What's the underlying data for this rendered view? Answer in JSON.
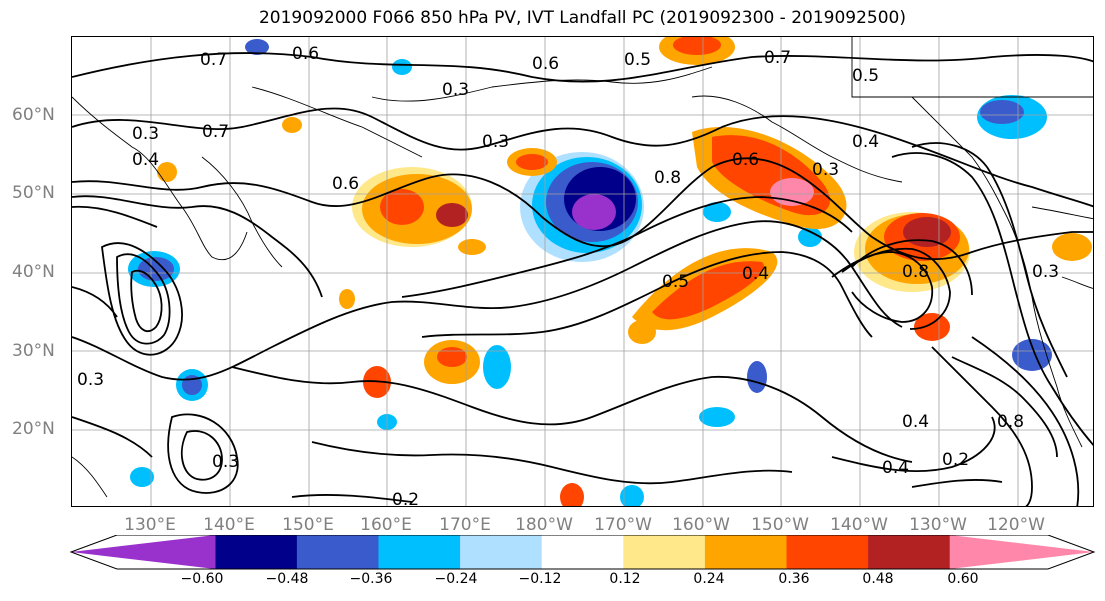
{
  "title": "2019092000 F066 850 hPa PV, IVT Landfall PC (2019092300 - 2019092500)",
  "lat_labels": [
    "60°N",
    "50°N",
    "40°N",
    "30°N",
    "20°N"
  ],
  "lon_labels": [
    "130°E",
    "140°E",
    "150°E",
    "160°E",
    "170°E",
    "180°W",
    "170°W",
    "160°W",
    "150°W",
    "140°W",
    "130°W",
    "120°W"
  ],
  "colorbar": {
    "ticks": [
      "−0.60",
      "−0.48",
      "−0.36",
      "−0.24",
      "−0.12",
      "0.12",
      "0.24",
      "0.36",
      "0.48",
      "0.60"
    ],
    "colors": [
      "#9932CC",
      "#00008B",
      "#3A5BCC",
      "#00BFFF",
      "#B0E0FF",
      "#FFFFFF",
      "#FFE88A",
      "#FFA500",
      "#FF4500",
      "#B22222",
      "#FF88AA"
    ]
  },
  "contour_labels": [
    "0.6",
    "0.7",
    "0.6",
    "0.5",
    "0.7",
    "0.5",
    "0.3",
    "0.3",
    "0.4",
    "0.3",
    "0.8",
    "0.6",
    "0.3",
    "0.4",
    "0.7",
    "0.6",
    "0.3",
    "0.4",
    "0.4",
    "0.2",
    "0.3",
    "0.2",
    "0.8",
    "0.3",
    "0.5",
    "0.4",
    "0.8"
  ]
}
